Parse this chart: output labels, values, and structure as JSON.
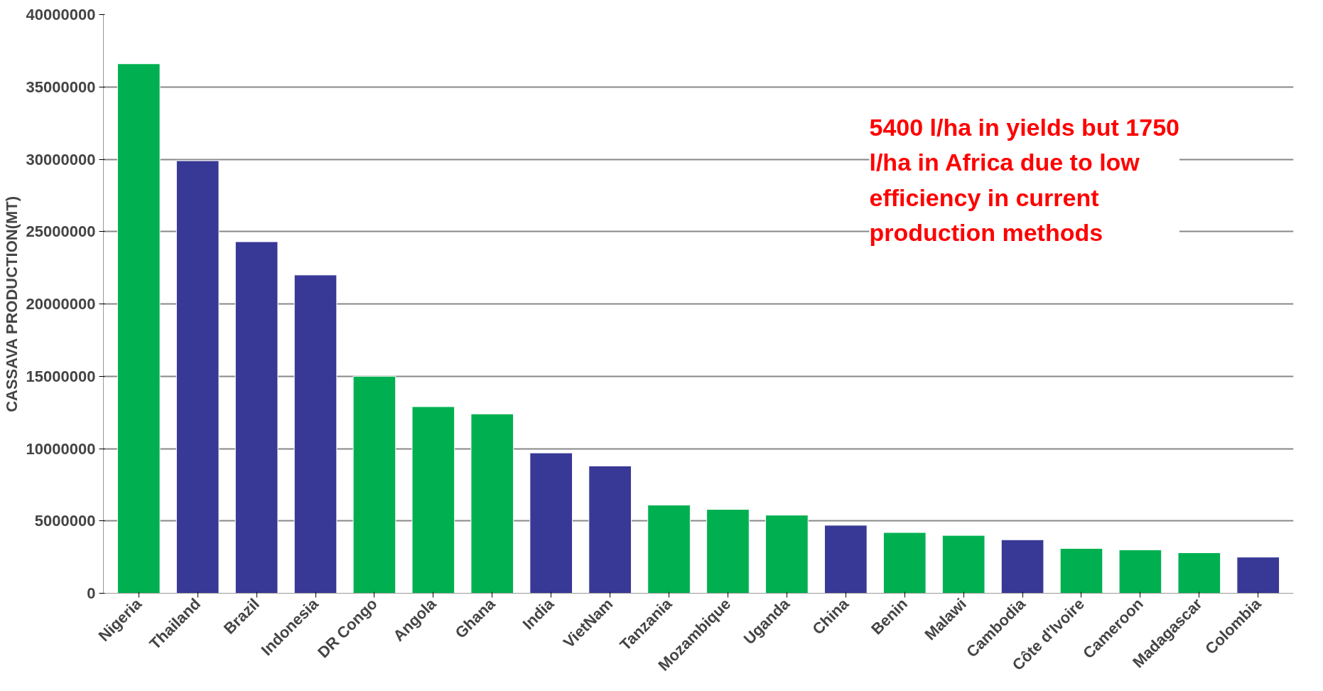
{
  "chart_data": {
    "type": "bar",
    "ylabel": "CASSAVA PRODUCTION(MT)",
    "categories": [
      "Nigeria",
      "Thailand",
      "Brazil",
      "Indonesia",
      "DR Congo",
      "Angola",
      "Ghana",
      "India",
      "VietNam",
      "Tanzania",
      "Mozambique",
      "Uganda",
      "China",
      "Benin",
      "Malawi",
      "Cambodia",
      "Côte d'Ivoire",
      "Cameroon",
      "Madagascar",
      "Colombia"
    ],
    "values": [
      36600000,
      29900000,
      24300000,
      22000000,
      15000000,
      12900000,
      12400000,
      9700000,
      8800000,
      6100000,
      5800000,
      5400000,
      4700000,
      4200000,
      4000000,
      3700000,
      3100000,
      3000000,
      2800000,
      2500000
    ],
    "colors": [
      "#00b050",
      "#383896",
      "#383896",
      "#383896",
      "#00b050",
      "#00b050",
      "#00b050",
      "#383896",
      "#383896",
      "#00b050",
      "#00b050",
      "#00b050",
      "#383896",
      "#00b050",
      "#00b050",
      "#383896",
      "#00b050",
      "#00b050",
      "#00b050",
      "#383896"
    ],
    "ylim": [
      0,
      40000000
    ],
    "yticks": [
      0,
      5000000,
      10000000,
      15000000,
      20000000,
      25000000,
      30000000,
      35000000,
      40000000
    ],
    "grid": "y",
    "annotations": [
      "5400 l/ha in yields but 1750 l/ha in Africa due to low efficiency in current production methods"
    ]
  }
}
